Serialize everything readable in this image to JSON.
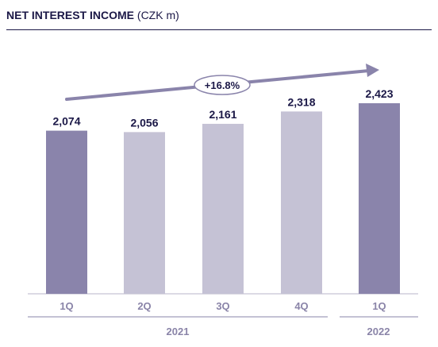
{
  "title": {
    "main": "NET INTEREST INCOME",
    "unit": "(CZK m)"
  },
  "growth_label": "+16.8%",
  "colors": {
    "highlight": "#8a84ab",
    "muted": "#c5c2d5",
    "text": "#1b1847",
    "axis_text": "#8a84a8"
  },
  "chart_data": {
    "type": "bar",
    "categories": [
      "1Q",
      "2Q",
      "3Q",
      "4Q",
      "1Q"
    ],
    "values": [
      2074,
      2056,
      2161,
      2318,
      2423
    ],
    "value_labels": [
      "2,074",
      "2,056",
      "2,161",
      "2,318",
      "2,423"
    ],
    "highlighted": [
      true,
      false,
      false,
      false,
      true
    ],
    "groups": [
      {
        "label": "2021",
        "from": 0,
        "to": 3
      },
      {
        "label": "2022",
        "from": 4,
        "to": 4
      }
    ],
    "title": "NET INTEREST INCOME (CZK m)",
    "annotation": "+16.8%",
    "ylim": [
      0,
      2423
    ],
    "grid": false
  }
}
